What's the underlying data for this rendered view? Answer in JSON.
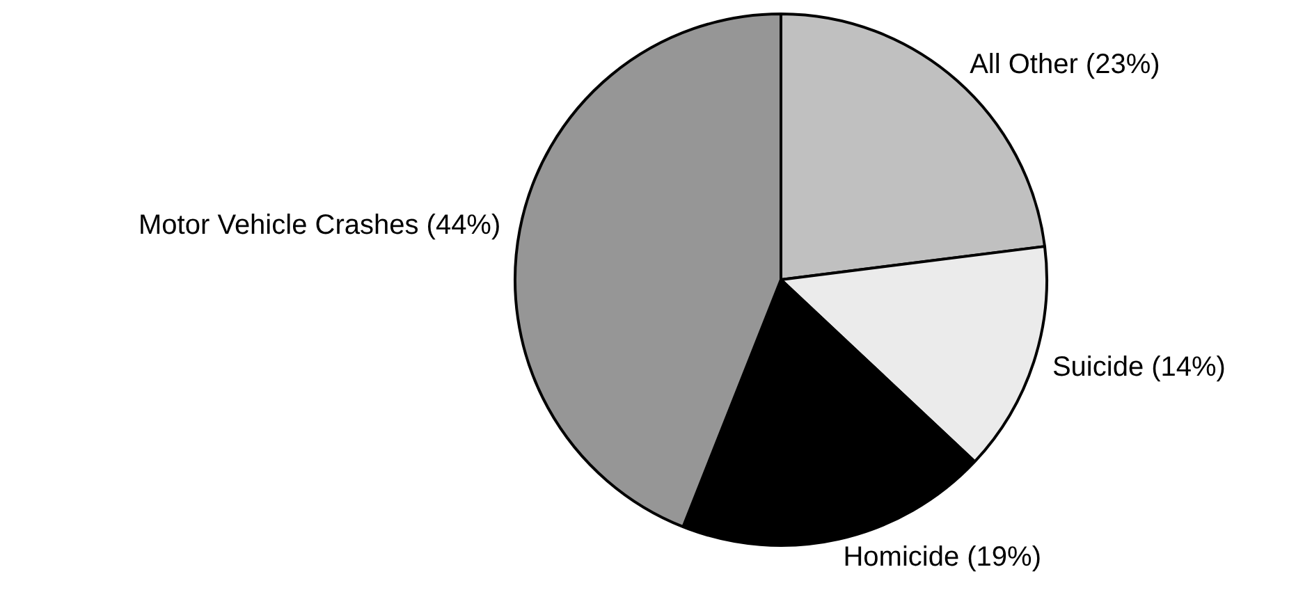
{
  "chart_data": {
    "type": "pie",
    "categories": [
      "All Other (23%)",
      "Suicide (14%)",
      "Homicide (19%)",
      "Motor Vehicle Crashes (44%)"
    ],
    "values": [
      23,
      14,
      19,
      44
    ],
    "colors": [
      "#c0c0c0",
      "#ebebeb",
      "#000000",
      "#969696"
    ],
    "legend": false
  }
}
